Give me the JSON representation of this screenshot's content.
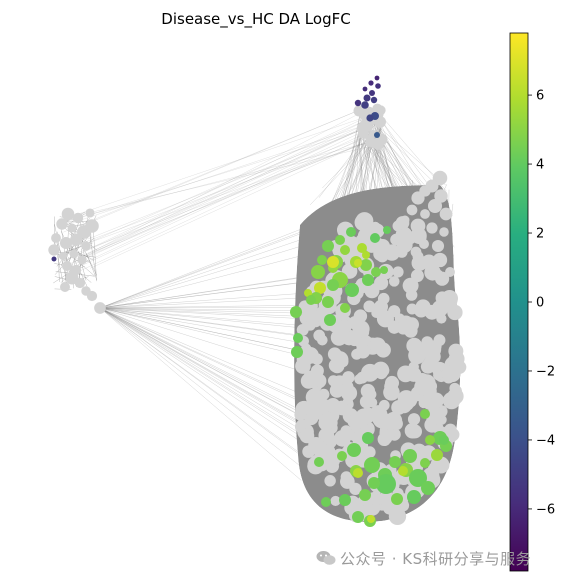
{
  "chart_data": {
    "type": "scatter",
    "subtype": "network-graph",
    "title": "Disease_vs_HC DA LogFC",
    "colorbar": {
      "colormap": "viridis",
      "vmin": -7.8,
      "vmax": 7.8,
      "ticks": [
        -6,
        -4,
        -2,
        0,
        2,
        4,
        6
      ],
      "tick_labels": [
        "−6",
        "−4",
        "−2",
        "0",
        "2",
        "4",
        "6"
      ]
    },
    "colors": {
      "not_significant": "#d3d3d3",
      "edge": "#808080"
    },
    "clusters": [
      {
        "id": "top",
        "significant": "negative LogFC (about -4 to -6)"
      },
      {
        "id": "left",
        "significant": "one node, negative LogFC"
      },
      {
        "id": "main",
        "significant": "many nodes, positive LogFC (about 3 to 6)"
      }
    ],
    "legend": "colorbar right",
    "axes": "off"
  },
  "watermark": {
    "text": "公众号 · KS科研分享与服务",
    "icon": "wechat-icon"
  }
}
